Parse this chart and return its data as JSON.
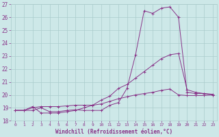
{
  "xlabel": "Windchill (Refroidissement éolien,°C)",
  "xlim": [
    -0.5,
    23.5
  ],
  "ylim": [
    18,
    27
  ],
  "xticks": [
    0,
    1,
    2,
    3,
    4,
    5,
    6,
    7,
    8,
    9,
    10,
    11,
    12,
    13,
    14,
    15,
    16,
    17,
    18,
    19,
    20,
    21,
    22,
    23
  ],
  "yticks": [
    18,
    19,
    20,
    21,
    22,
    23,
    24,
    25,
    26,
    27
  ],
  "bg_color": "#cde8e8",
  "grid_color": "#aacccc",
  "line_color": "#883388",
  "line1_x": [
    0,
    1,
    2,
    3,
    4,
    5,
    6,
    7,
    8,
    9,
    10,
    11,
    12,
    13,
    14,
    15,
    16,
    17,
    18,
    19,
    20,
    21,
    22,
    23
  ],
  "line1_y": [
    18.8,
    18.8,
    18.8,
    19.0,
    18.7,
    18.7,
    18.8,
    18.85,
    18.8,
    18.8,
    18.8,
    19.2,
    19.4,
    20.5,
    23.1,
    26.5,
    26.3,
    26.7,
    26.8,
    26.0,
    20.2,
    20.1,
    20.1,
    20.0
  ],
  "line2_x": [
    0,
    1,
    2,
    3,
    4,
    5,
    6,
    7,
    8,
    9,
    10,
    11,
    12,
    13,
    14,
    15,
    16,
    17,
    18,
    19,
    20,
    21,
    22,
    23
  ],
  "line2_y": [
    18.8,
    18.8,
    19.1,
    18.6,
    18.6,
    18.6,
    18.7,
    18.8,
    19.0,
    19.2,
    19.6,
    19.9,
    20.5,
    20.8,
    21.3,
    21.8,
    22.3,
    22.8,
    23.1,
    23.2,
    20.4,
    20.2,
    20.1,
    20.05
  ],
  "line3_x": [
    0,
    1,
    2,
    3,
    4,
    5,
    6,
    7,
    8,
    9,
    10,
    11,
    12,
    13,
    14,
    15,
    16,
    17,
    18,
    19,
    20,
    21,
    22,
    23
  ],
  "line3_y": [
    18.8,
    18.8,
    19.0,
    19.1,
    19.1,
    19.1,
    19.15,
    19.2,
    19.2,
    19.2,
    19.3,
    19.5,
    19.7,
    19.85,
    20.0,
    20.1,
    20.2,
    20.35,
    20.45,
    20.0,
    19.95,
    19.95,
    19.95,
    20.0
  ]
}
